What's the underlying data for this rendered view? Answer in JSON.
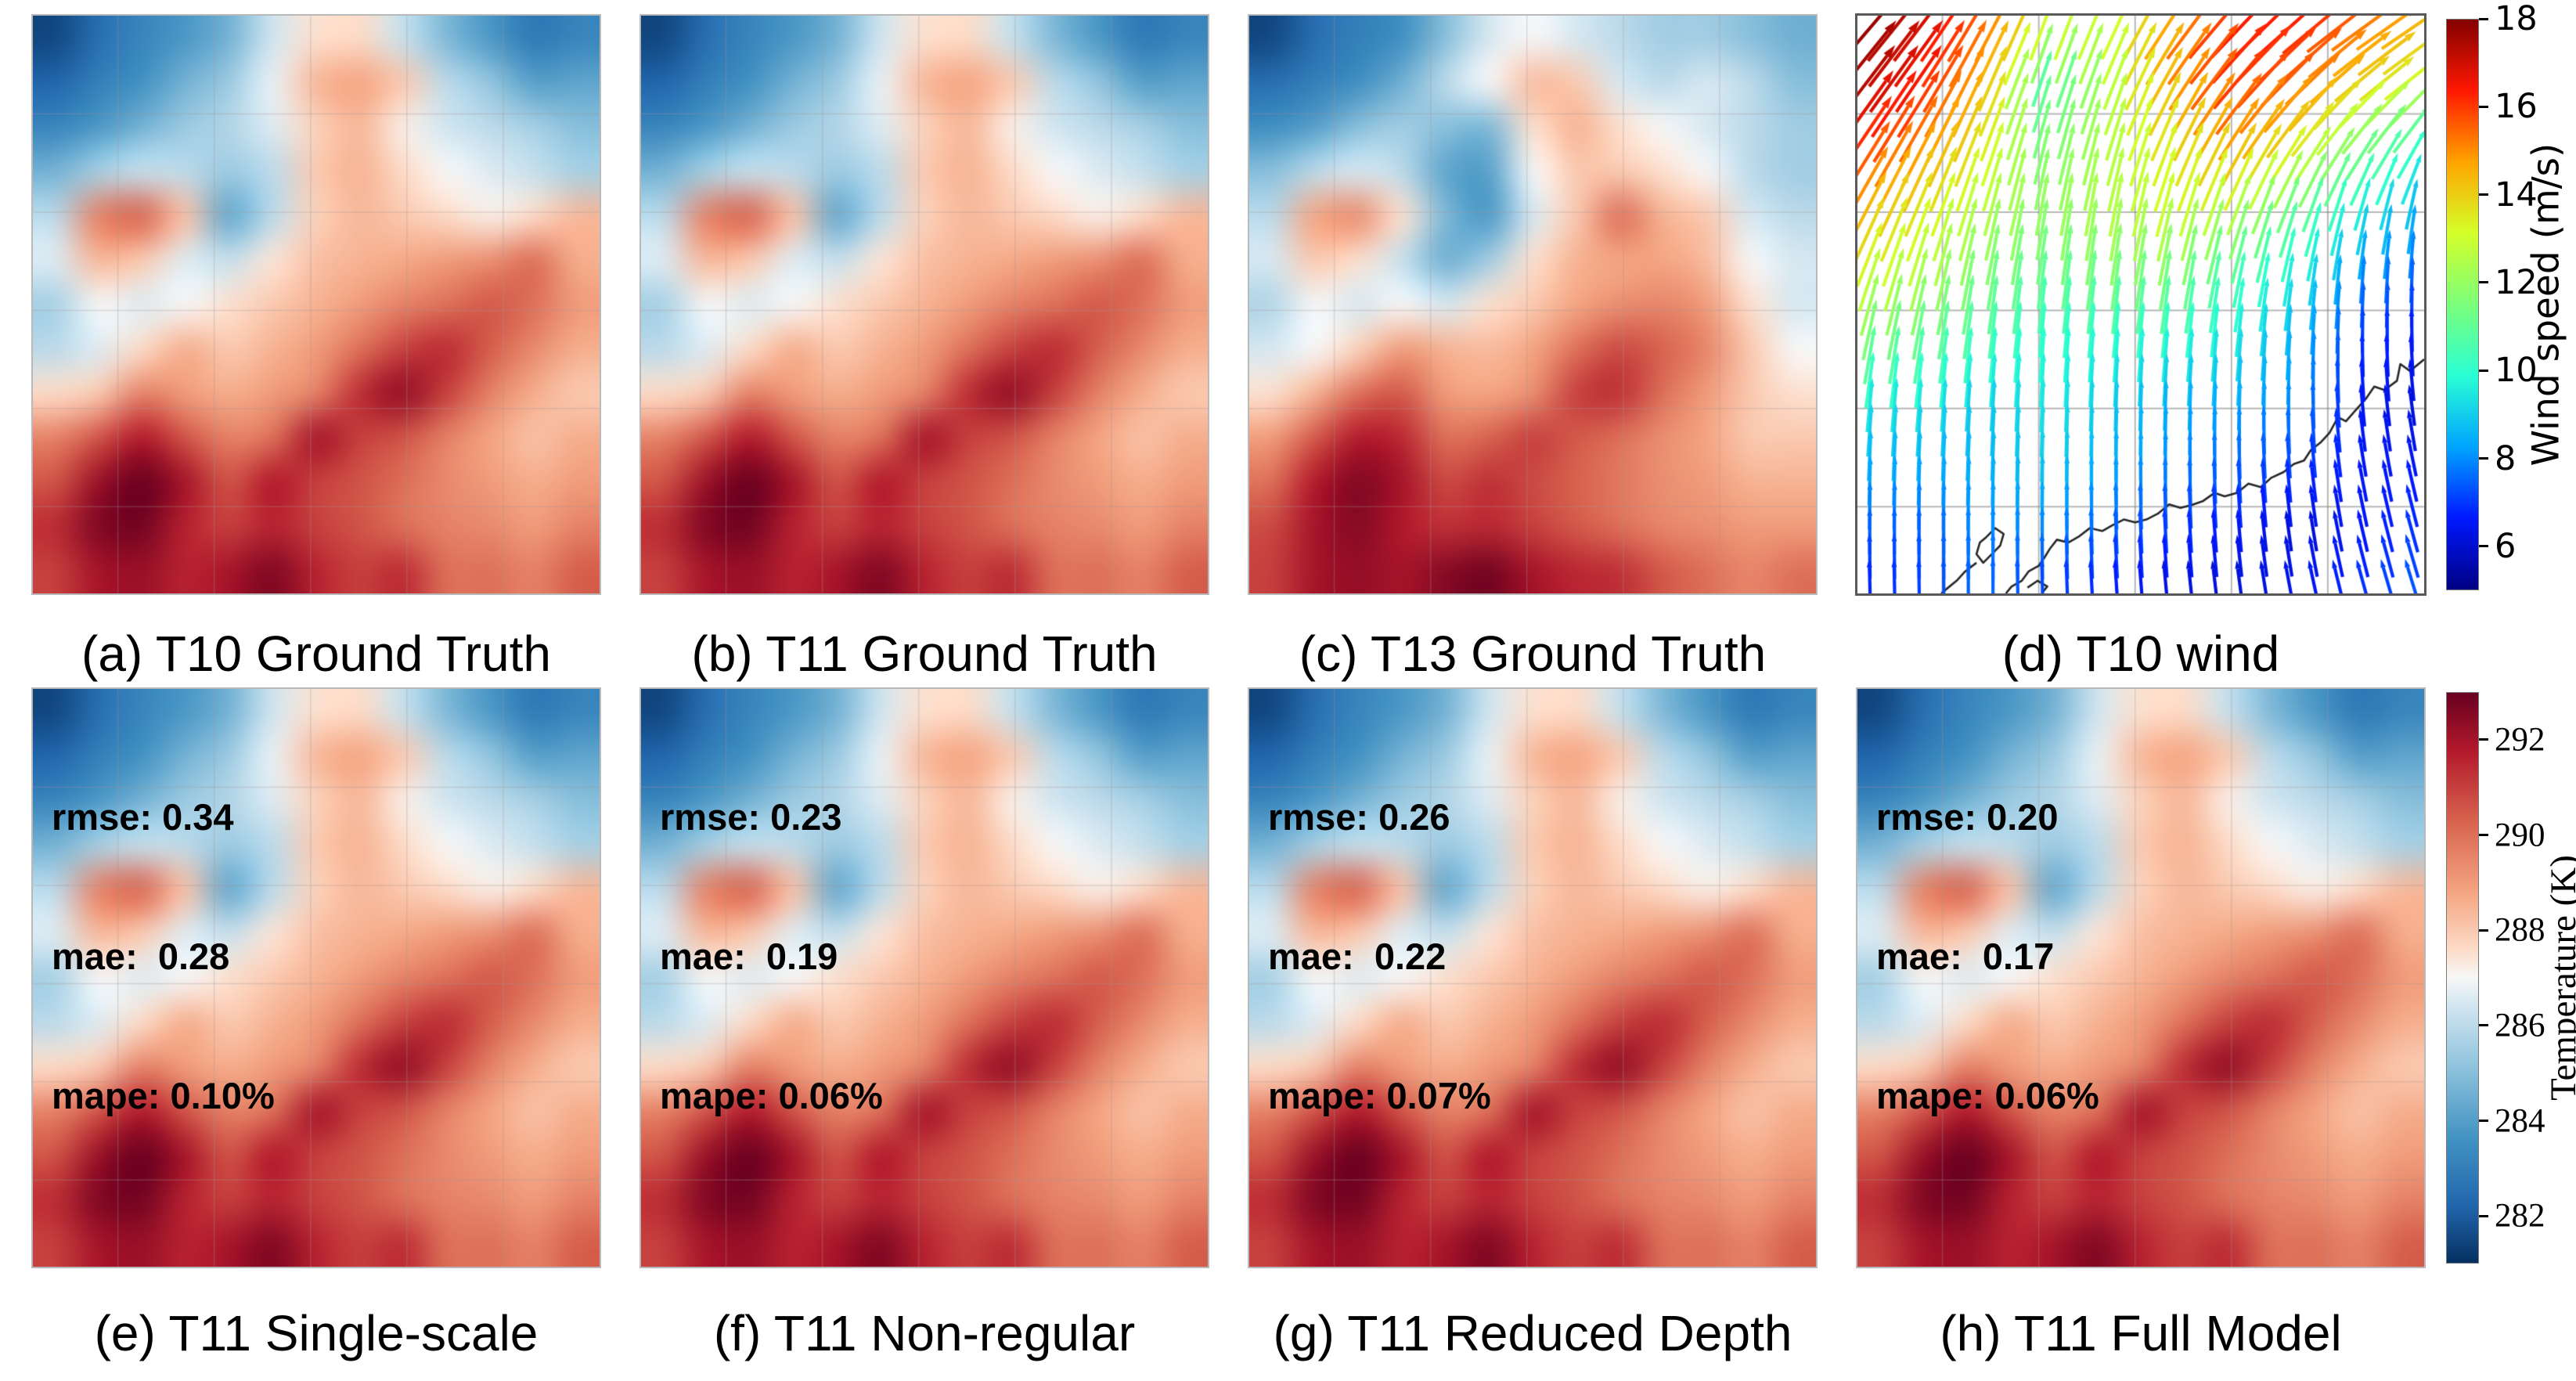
{
  "figure": {
    "background": "#ffffff",
    "panels": [
      {
        "id": "a",
        "caption": "(a) T10 Ground Truth",
        "type": "temperature",
        "field": "base"
      },
      {
        "id": "b",
        "caption": "(b) T11 Ground Truth",
        "type": "temperature",
        "field": "base"
      },
      {
        "id": "c",
        "caption": "(c) T13 Ground Truth",
        "type": "temperature",
        "field": "t13"
      },
      {
        "id": "d",
        "caption": "(d) T10 wind",
        "type": "wind"
      },
      {
        "id": "e",
        "caption": "(e) T11 Single-scale",
        "type": "temperature",
        "field": "base",
        "metrics_lines": [
          "rmse: 0.34",
          "mae:  0.28",
          "mape: 0.10%"
        ]
      },
      {
        "id": "f",
        "caption": "(f) T11 Non-regular",
        "type": "temperature",
        "field": "base",
        "metrics_lines": [
          "rmse: 0.23",
          "mae:  0.19",
          "mape: 0.06%"
        ]
      },
      {
        "id": "g",
        "caption": "(g) T11 Reduced Depth",
        "type": "temperature",
        "field": "base",
        "metrics_lines": [
          "rmse: 0.26",
          "mae:  0.22",
          "mape: 0.07%"
        ]
      },
      {
        "id": "h",
        "caption": "(h) T11 Full Model",
        "type": "temperature",
        "field": "base",
        "metrics_lines": [
          "rmse: 0.20",
          "mae:  0.17",
          "mape: 0.06%"
        ]
      }
    ],
    "colors": {
      "text": "#000000",
      "coastline": "#262626",
      "temp_grid": "rgba(165,150,150,0.30)",
      "wind_grid": "rgba(125,125,125,0.55)",
      "temp_spine": "#b9b9b9",
      "wind_spine": "#595959"
    }
  },
  "chart_data": {
    "type": "heatmap",
    "description": "2x4 grid: seven smoothed 2-m temperature heatmaps (RdBu_r) and one wind quiver plot (jet by speed) with coastline; shared vertical colorbars at right.",
    "temperature": {
      "units": "K",
      "cmin": 281,
      "cmax": 293,
      "colormap_stops": [
        [
          0,
          "#053061"
        ],
        [
          0.1,
          "#2166ac"
        ],
        [
          0.22,
          "#4393c3"
        ],
        [
          0.35,
          "#92c5de"
        ],
        [
          0.45,
          "#d1e5f0"
        ],
        [
          0.5,
          "#f7f7f7"
        ],
        [
          0.55,
          "#fddbc7"
        ],
        [
          0.65,
          "#f4a582"
        ],
        [
          0.78,
          "#d6604d"
        ],
        [
          0.9,
          "#b2182b"
        ],
        [
          1,
          "#67001f"
        ]
      ],
      "colorbar": {
        "label": "Temperature (K)",
        "ticks": [
          282,
          284,
          286,
          288,
          290,
          292
        ]
      },
      "fields": {
        "base": [
          [
            281.5,
            282.5,
            283.2,
            283.8,
            284.6,
            286.4,
            287.5,
            287.6,
            286.2,
            284.8,
            283.8,
            282.8,
            283.2
          ],
          [
            282.2,
            283.0,
            283.6,
            284.6,
            285.4,
            286.8,
            288.4,
            288.8,
            288.0,
            286.0,
            285.2,
            284.0,
            284.2
          ],
          [
            283.2,
            283.8,
            284.6,
            285.4,
            285.8,
            286.6,
            287.8,
            288.4,
            287.2,
            286.4,
            286.0,
            285.6,
            285.0
          ],
          [
            284.6,
            285.6,
            286.2,
            286.0,
            285.4,
            286.0,
            288.0,
            288.5,
            287.6,
            287.0,
            286.6,
            286.2,
            285.6
          ],
          [
            286.0,
            289.6,
            290.2,
            288.2,
            284.3,
            286.0,
            287.8,
            288.4,
            288.0,
            287.6,
            287.2,
            287.6,
            288.4
          ],
          [
            286.6,
            288.4,
            288.0,
            286.6,
            286.2,
            287.4,
            288.2,
            288.5,
            288.7,
            289.0,
            289.3,
            290.0,
            288.6
          ],
          [
            285.6,
            287.0,
            286.6,
            287.0,
            287.5,
            288.0,
            288.5,
            289.0,
            289.6,
            290.0,
            290.5,
            290.0,
            289.0
          ],
          [
            286.0,
            286.6,
            287.6,
            288.6,
            288.0,
            288.5,
            289.0,
            290.0,
            291.0,
            291.4,
            290.4,
            289.4,
            288.6
          ],
          [
            287.6,
            288.0,
            289.6,
            289.0,
            288.6,
            289.0,
            289.6,
            291.4,
            292.3,
            291.0,
            289.6,
            288.6,
            288.0
          ],
          [
            289.6,
            290.6,
            291.8,
            290.6,
            289.6,
            290.0,
            292.0,
            291.0,
            290.6,
            289.6,
            288.8,
            288.2,
            288.6
          ],
          [
            290.6,
            292.2,
            293.0,
            292.0,
            290.6,
            291.8,
            291.0,
            290.6,
            290.0,
            289.4,
            289.0,
            288.6,
            289.0
          ],
          [
            291.4,
            292.6,
            292.8,
            291.6,
            291.0,
            291.6,
            291.0,
            290.6,
            290.0,
            289.6,
            289.4,
            289.0,
            289.6
          ],
          [
            291.0,
            292.0,
            292.2,
            291.6,
            292.0,
            292.6,
            291.6,
            291.0,
            291.4,
            290.0,
            290.0,
            289.6,
            290.4
          ]
        ],
        "t13": [
          [
            281.5,
            282.5,
            283.0,
            283.5,
            285.0,
            286.5,
            287.0,
            286.5,
            286.0,
            285.5,
            285.5,
            285.0,
            284.5
          ],
          [
            282.5,
            283.0,
            283.5,
            284.5,
            286.0,
            287.0,
            288.3,
            288.0,
            286.5,
            286.0,
            286.5,
            286.0,
            285.0
          ],
          [
            283.5,
            284.0,
            285.0,
            285.5,
            285.0,
            284.8,
            287.5,
            288.5,
            287.5,
            287.0,
            286.5,
            286.0,
            285.5
          ],
          [
            285.0,
            286.0,
            286.5,
            286.0,
            284.2,
            284.0,
            287.0,
            288.0,
            288.0,
            287.5,
            287.0,
            286.0,
            285.5
          ],
          [
            286.0,
            288.8,
            289.3,
            287.5,
            284.8,
            283.8,
            286.5,
            288.0,
            290.0,
            288.5,
            288.0,
            286.5,
            286.0
          ],
          [
            286.5,
            288.0,
            287.5,
            286.2,
            284.5,
            285.5,
            287.5,
            288.5,
            288.8,
            288.8,
            288.3,
            287.0,
            286.5
          ],
          [
            285.8,
            287.0,
            286.5,
            287.0,
            286.5,
            287.5,
            288.0,
            288.8,
            289.3,
            289.5,
            289.0,
            287.5,
            286.5
          ],
          [
            286.5,
            287.0,
            287.8,
            289.0,
            288.5,
            288.3,
            288.8,
            290.0,
            290.8,
            290.3,
            289.5,
            288.0,
            287.0
          ],
          [
            287.5,
            288.5,
            290.0,
            290.5,
            289.0,
            288.8,
            289.3,
            291.0,
            291.3,
            290.0,
            289.0,
            288.0,
            287.5
          ],
          [
            289.0,
            290.5,
            291.8,
            291.5,
            290.0,
            290.3,
            291.0,
            290.5,
            290.0,
            289.3,
            288.8,
            288.0,
            288.0
          ],
          [
            290.0,
            291.8,
            292.6,
            292.0,
            290.8,
            291.3,
            290.8,
            290.3,
            289.8,
            289.3,
            289.0,
            288.5,
            288.5
          ],
          [
            290.8,
            292.0,
            292.5,
            291.8,
            291.3,
            291.5,
            291.0,
            290.5,
            290.0,
            289.5,
            289.3,
            289.0,
            289.0
          ],
          [
            291.0,
            292.0,
            292.3,
            292.0,
            292.5,
            292.8,
            292.0,
            291.5,
            291.3,
            290.5,
            290.0,
            289.5,
            290.0
          ]
        ]
      }
    },
    "wind": {
      "units": "m/s",
      "cmin": 5,
      "cmax": 18,
      "colormap_stops": [
        [
          0,
          "#000083"
        ],
        [
          0.125,
          "#0018ff"
        ],
        [
          0.25,
          "#00a4ff"
        ],
        [
          0.375,
          "#2affd4"
        ],
        [
          0.5,
          "#7bff7b"
        ],
        [
          0.625,
          "#d4ff2a"
        ],
        [
          0.75,
          "#ffa400"
        ],
        [
          0.875,
          "#ff1800"
        ],
        [
          1,
          "#830000"
        ]
      ],
      "colorbar": {
        "label": "Wind speed (m/s)",
        "ticks": [
          6,
          8,
          10,
          12,
          14,
          16,
          18
        ]
      },
      "speed": [
        [
          18.0,
          17.0,
          15.5,
          13.5,
          13.0,
          15.0,
          16.5,
          16.5,
          15.5,
          14.5
        ],
        [
          17.5,
          16.5,
          14.5,
          10.5,
          12.5,
          14.5,
          16.0,
          15.5,
          14.0,
          13.0
        ],
        [
          16.0,
          15.0,
          13.5,
          11.5,
          12.5,
          13.5,
          14.5,
          13.5,
          11.5,
          10.0
        ],
        [
          14.5,
          13.5,
          12.5,
          12.0,
          12.5,
          13.0,
          12.5,
          11.0,
          9.5,
          8.5
        ],
        [
          13.0,
          12.5,
          11.5,
          11.0,
          11.5,
          11.5,
          10.5,
          9.5,
          8.0,
          7.5
        ],
        [
          11.5,
          11.0,
          10.5,
          10.0,
          10.0,
          10.0,
          9.5,
          8.5,
          7.0,
          6.5
        ],
        [
          9.5,
          9.5,
          9.0,
          9.5,
          9.0,
          8.5,
          8.5,
          8.0,
          6.5,
          6.0
        ],
        [
          8.5,
          8.5,
          8.5,
          9.0,
          8.5,
          8.0,
          7.5,
          7.0,
          6.5,
          6.5
        ],
        [
          7.5,
          7.5,
          8.0,
          8.0,
          7.5,
          7.0,
          6.5,
          6.0,
          6.5,
          7.0
        ],
        [
          6.5,
          7.0,
          7.5,
          7.0,
          6.5,
          6.0,
          6.0,
          6.5,
          7.0,
          7.5
        ]
      ],
      "direction_deg": [
        [
          48,
          52,
          60,
          70,
          66,
          55,
          46,
          40,
          35,
          33
        ],
        [
          52,
          56,
          66,
          72,
          70,
          60,
          50,
          45,
          40,
          38
        ],
        [
          56,
          62,
          70,
          76,
          75,
          68,
          60,
          55,
          55,
          58
        ],
        [
          62,
          68,
          75,
          80,
          80,
          75,
          70,
          70,
          75,
          80
        ],
        [
          70,
          75,
          80,
          82,
          82,
          80,
          78,
          80,
          85,
          88
        ],
        [
          78,
          80,
          83,
          85,
          85,
          84,
          84,
          86,
          90,
          92
        ],
        [
          84,
          85,
          86,
          87,
          88,
          88,
          88,
          90,
          95,
          98
        ],
        [
          88,
          88,
          88,
          89,
          90,
          90,
          92,
          95,
          100,
          103
        ],
        [
          90,
          90,
          90,
          90,
          92,
          93,
          95,
          98,
          103,
          106
        ],
        [
          92,
          91,
          90,
          92,
          94,
          96,
          98,
          102,
          106,
          108
        ]
      ],
      "coastline": [
        [
          [
            1.0,
            0.595
          ],
          [
            0.975,
            0.615
          ],
          [
            0.958,
            0.603
          ],
          [
            0.952,
            0.632
          ],
          [
            0.93,
            0.648
          ],
          [
            0.912,
            0.642
          ],
          [
            0.898,
            0.662
          ],
          [
            0.878,
            0.684
          ],
          [
            0.862,
            0.702
          ],
          [
            0.848,
            0.695
          ],
          [
            0.833,
            0.722
          ],
          [
            0.818,
            0.738
          ],
          [
            0.8,
            0.752
          ],
          [
            0.788,
            0.77
          ],
          [
            0.77,
            0.776
          ],
          [
            0.752,
            0.79
          ],
          [
            0.73,
            0.8
          ],
          [
            0.712,
            0.816
          ],
          [
            0.69,
            0.81
          ],
          [
            0.67,
            0.826
          ],
          [
            0.648,
            0.832
          ],
          [
            0.63,
            0.826
          ],
          [
            0.61,
            0.84
          ],
          [
            0.59,
            0.847
          ],
          [
            0.57,
            0.852
          ],
          [
            0.55,
            0.846
          ],
          [
            0.53,
            0.862
          ],
          [
            0.51,
            0.872
          ],
          [
            0.49,
            0.877
          ],
          [
            0.47,
            0.872
          ],
          [
            0.45,
            0.882
          ],
          [
            0.432,
            0.892
          ],
          [
            0.41,
            0.887
          ],
          [
            0.39,
            0.902
          ],
          [
            0.372,
            0.912
          ],
          [
            0.352,
            0.907
          ],
          [
            0.34,
            0.922
          ],
          [
            0.33,
            0.938
          ],
          [
            0.32,
            0.952
          ],
          [
            0.302,
            0.962
          ],
          [
            0.29,
            0.978
          ],
          [
            0.272,
            0.988
          ],
          [
            0.262,
            1.0
          ]
        ],
        [
          [
            0.228,
            0.902
          ],
          [
            0.243,
            0.887
          ],
          [
            0.258,
            0.897
          ],
          [
            0.252,
            0.917
          ],
          [
            0.237,
            0.932
          ],
          [
            0.222,
            0.947
          ],
          [
            0.21,
            0.932
          ],
          [
            0.216,
            0.912
          ],
          [
            0.228,
            0.902
          ]
        ],
        [
          [
            0.3,
            0.99
          ],
          [
            0.318,
            0.978
          ],
          [
            0.335,
            0.988
          ],
          [
            0.325,
            1.0
          ]
        ],
        [
          [
            0.21,
            0.947
          ],
          [
            0.19,
            0.962
          ],
          [
            0.175,
            0.978
          ],
          [
            0.16,
            0.99
          ],
          [
            0.148,
            1.0
          ]
        ]
      ],
      "grid_fracs_x": [
        0.15,
        0.32,
        0.49,
        0.66,
        0.83
      ],
      "grid_fracs_y": [
        0.17,
        0.34,
        0.51,
        0.68,
        0.85
      ]
    }
  }
}
